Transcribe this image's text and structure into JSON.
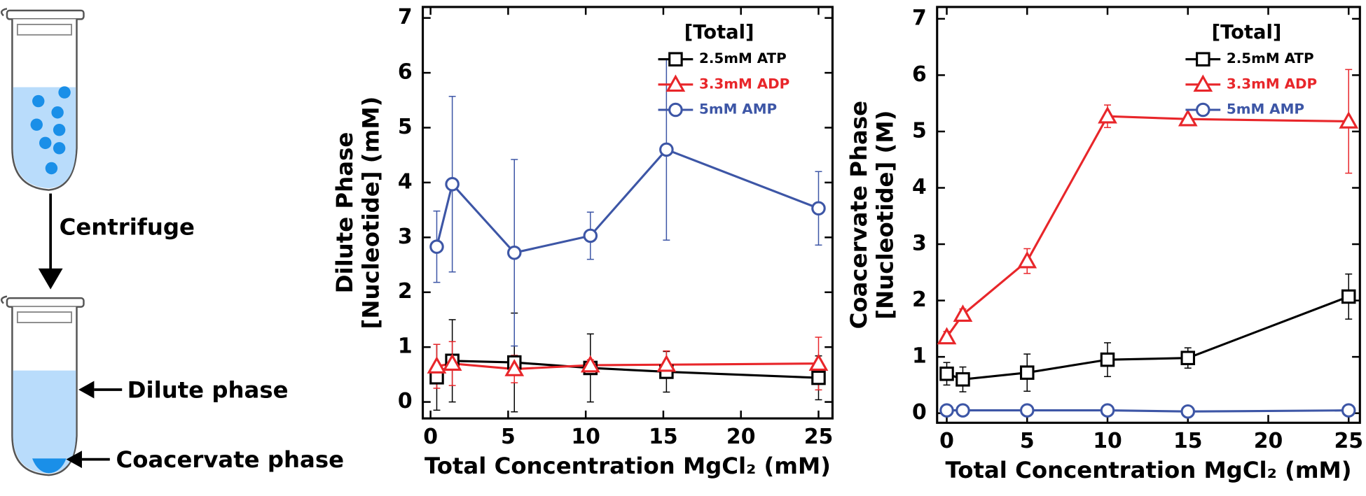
{
  "diagram": {
    "labels": [
      "Centrifuge",
      "Dilute phase",
      "Coacervate phase"
    ]
  },
  "chart_data": [
    {
      "type": "line",
      "xlabel": "Total Concentration MgCl₂ (mM)",
      "ylabel": [
        "Dilute Phase",
        "[Nucleotide] (mM)"
      ],
      "xlim": [
        -0.5,
        25.9
      ],
      "ylim": [
        -0.3,
        7.2
      ],
      "xticks": [
        0,
        5,
        10,
        15,
        20,
        25
      ],
      "yticks": [
        0,
        1,
        2,
        3,
        4,
        5,
        6,
        7
      ],
      "legend": "upper right",
      "legend_title": "[Total]",
      "series": [
        {
          "name": "2.5mM ATP",
          "color": "#000000",
          "marker": "square",
          "x": [
            0.4,
            1.4,
            5.4,
            10.3,
            15.2,
            25
          ],
          "values": [
            0.45,
            0.75,
            0.72,
            0.62,
            0.55,
            0.44
          ],
          "errors": [
            0.6,
            0.75,
            0.9,
            0.62,
            0.37,
            0.4
          ]
        },
        {
          "name": "3.3mM ADP",
          "color": "#e8262a",
          "marker": "triangle",
          "x": [
            0.4,
            1.4,
            5.4,
            10.3,
            15.2,
            25
          ],
          "values": [
            0.65,
            0.7,
            0.6,
            0.67,
            0.68,
            0.7
          ],
          "errors": [
            0.4,
            0.4,
            0.25,
            0.1,
            0.25,
            0.48
          ]
        },
        {
          "name": "5mM AMP",
          "color": "#3d56a6",
          "marker": "circle",
          "x": [
            0.4,
            1.4,
            5.4,
            10.3,
            15.2,
            25
          ],
          "values": [
            2.83,
            3.97,
            2.72,
            3.03,
            4.6,
            3.53
          ],
          "errors": [
            0.65,
            1.6,
            1.7,
            0.43,
            1.65,
            0.67
          ]
        }
      ]
    },
    {
      "type": "line",
      "xlabel": "Total Concentration MgCl₂ (mM)",
      "ylabel": [
        "Coacervate Phase",
        "[Nucleotide] (M)"
      ],
      "xlim": [
        -0.6,
        25.7
      ],
      "ylim": [
        -0.17,
        7.21
      ],
      "xticks": [
        0,
        5,
        10,
        15,
        20,
        25
      ],
      "yticks": [
        0,
        1,
        2,
        3,
        4,
        5,
        6,
        7
      ],
      "legend": "upper right",
      "legend_title": "[Total]",
      "series": [
        {
          "name": "2.5mM ATP",
          "color": "#000000",
          "marker": "square",
          "x": [
            0,
            1,
            5,
            10,
            15,
            25
          ],
          "values": [
            0.7,
            0.6,
            0.72,
            0.95,
            0.98,
            2.07
          ],
          "errors": [
            0.2,
            0.22,
            0.33,
            0.3,
            0.18,
            0.4
          ]
        },
        {
          "name": "3.3mM ADP",
          "color": "#e8262a",
          "marker": "triangle",
          "x": [
            0,
            1,
            5,
            10,
            15,
            25
          ],
          "values": [
            1.35,
            1.75,
            2.7,
            5.27,
            5.22,
            5.18
          ],
          "errors": [
            0.1,
            0.1,
            0.22,
            0.2,
            0.05,
            0.92
          ]
        },
        {
          "name": "5mM AMP",
          "color": "#3d56a6",
          "marker": "circle",
          "x": [
            0,
            1,
            5,
            10,
            15,
            25
          ],
          "values": [
            0.05,
            0.05,
            0.05,
            0.05,
            0.03,
            0.05
          ],
          "errors": [
            0.03,
            0.03,
            0.03,
            0.03,
            0.03,
            0.03
          ]
        }
      ]
    }
  ]
}
